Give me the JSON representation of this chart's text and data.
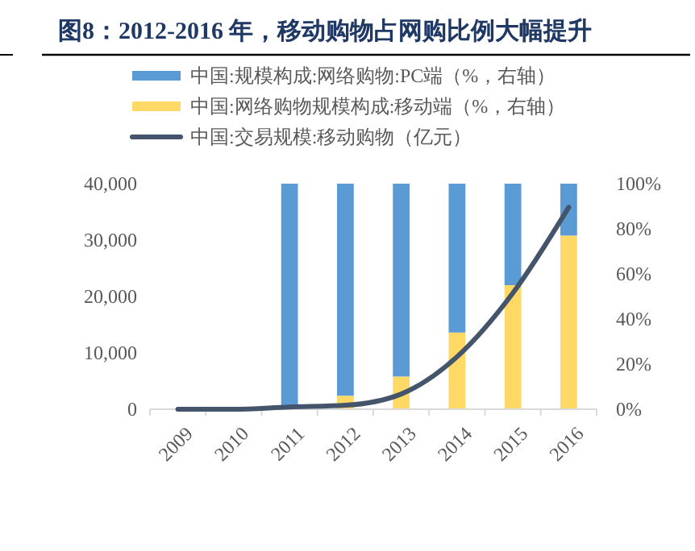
{
  "chart_data": {
    "type": "bar",
    "title": "图8：2012-2016 年，移动购物占网购比例大幅提升",
    "categories": [
      "2009",
      "2010",
      "2011",
      "2012",
      "2013",
      "2014",
      "2015",
      "2016"
    ],
    "stacked": true,
    "series": [
      {
        "name": "中国:网络购物规模构成:移动端（%，右轴）",
        "color": "#ffd966",
        "values": [
          null,
          null,
          null,
          6,
          14.5,
          34,
          55,
          77
        ],
        "axis": "y2"
      },
      {
        "name": "中国:规模构成:网络购物:PC端（%，右轴）",
        "color": "#5b9bd5",
        "values": [
          null,
          null,
          100,
          94,
          85.5,
          66,
          45,
          23
        ],
        "axis": "y2"
      },
      {
        "name": "中国:交易规模:移动购物（亿元）",
        "type": "line",
        "color": "#44546a",
        "values": [
          0,
          0,
          400,
          700,
          2700,
          9300,
          20600,
          35800
        ]
      }
    ],
    "ylim": [
      0,
      40000
    ],
    "yticks": [
      {
        "value": 0,
        "label": "0"
      },
      {
        "value": 10000,
        "label": "10,000"
      },
      {
        "value": 20000,
        "label": "20,000"
      },
      {
        "value": 30000,
        "label": "30,000"
      },
      {
        "value": 40000,
        "label": "40,000"
      }
    ],
    "y2lim": [
      0,
      100
    ],
    "y2ticks": [
      {
        "value": 0,
        "label": "0%"
      },
      {
        "value": 20,
        "label": "20%"
      },
      {
        "value": 40,
        "label": "40%"
      },
      {
        "value": 60,
        "label": "60%"
      },
      {
        "value": 80,
        "label": "80%"
      },
      {
        "value": 100,
        "label": "100%"
      }
    ],
    "legend": "top",
    "grid": false,
    "marker": "none",
    "line_style": "solid"
  }
}
